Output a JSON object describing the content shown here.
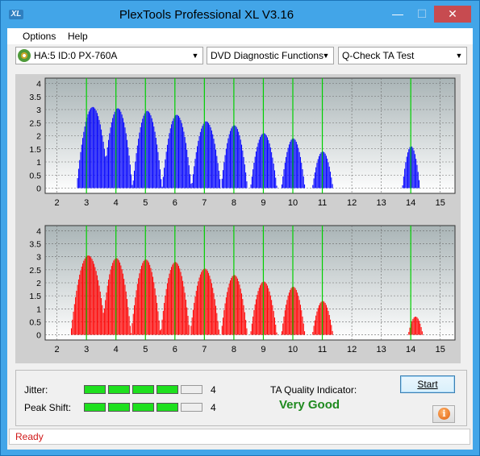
{
  "window": {
    "title": "PlexTools Professional XL V3.16",
    "app_icon_text": "XL",
    "minimize_glyph": "—",
    "maximize_glyph": "☐",
    "close_glyph": "✕"
  },
  "menu": {
    "items": [
      {
        "label": "Options"
      },
      {
        "label": "Help"
      }
    ]
  },
  "toolbar": {
    "drive": {
      "value": "HA:5 ID:0  PX-760A",
      "icon": "disc-drive-icon"
    },
    "function": {
      "value": "DVD Diagnostic Functions"
    },
    "test": {
      "value": "Q-Check TA Test"
    },
    "arrow_glyph": "▼"
  },
  "chart_data": [
    {
      "type": "bar",
      "name": "TA test top (land)",
      "x_ticks": [
        2,
        3,
        4,
        5,
        6,
        7,
        8,
        9,
        10,
        11,
        12,
        13,
        14,
        15
      ],
      "y_ticks": [
        0,
        0.5,
        1,
        1.5,
        2,
        2.5,
        3,
        3.5,
        4
      ],
      "y_tick_labels": [
        "0",
        "0.5",
        "1",
        "1.5",
        "2",
        "2.5",
        "3",
        "3.5",
        "4"
      ],
      "xlim": [
        1.6,
        15.5
      ],
      "ylim": [
        -0.2,
        4.2
      ],
      "green_markers": [
        3,
        4,
        5,
        6,
        7,
        8,
        9,
        10,
        11,
        14
      ],
      "bar_color": "#0000ff",
      "peaks": [
        {
          "center": 3.2,
          "height": 3.1,
          "width": 0.55
        },
        {
          "center": 4.05,
          "height": 3.05,
          "width": 0.5
        },
        {
          "center": 5.05,
          "height": 2.95,
          "width": 0.5
        },
        {
          "center": 6.05,
          "height": 2.8,
          "width": 0.5
        },
        {
          "center": 7.05,
          "height": 2.55,
          "width": 0.5
        },
        {
          "center": 8.0,
          "height": 2.4,
          "width": 0.45
        },
        {
          "center": 9.0,
          "height": 2.1,
          "width": 0.45
        },
        {
          "center": 10.0,
          "height": 1.9,
          "width": 0.4
        },
        {
          "center": 11.0,
          "height": 1.4,
          "width": 0.35
        },
        {
          "center": 14.0,
          "height": 1.6,
          "width": 0.3
        }
      ]
    },
    {
      "type": "bar",
      "name": "TA test bottom (groove)",
      "x_ticks": [
        2,
        3,
        4,
        5,
        6,
        7,
        8,
        9,
        10,
        11,
        12,
        13,
        14,
        15
      ],
      "y_ticks": [
        0,
        0.5,
        1,
        1.5,
        2,
        2.5,
        3,
        3.5,
        4
      ],
      "y_tick_labels": [
        "0",
        "0.5",
        "1",
        "1.5",
        "2",
        "2.5",
        "3",
        "3.5",
        "4"
      ],
      "xlim": [
        1.6,
        15.5
      ],
      "ylim": [
        -0.2,
        4.2
      ],
      "green_markers": [
        3,
        4,
        5,
        6,
        7,
        8,
        9,
        10,
        11,
        14
      ],
      "bar_color": "#ff0000",
      "peaks": [
        {
          "center": 3.05,
          "height": 3.05,
          "width": 0.6
        },
        {
          "center": 4.0,
          "height": 2.95,
          "width": 0.5
        },
        {
          "center": 5.0,
          "height": 2.9,
          "width": 0.5
        },
        {
          "center": 6.0,
          "height": 2.8,
          "width": 0.5
        },
        {
          "center": 7.0,
          "height": 2.55,
          "width": 0.5
        },
        {
          "center": 8.0,
          "height": 2.3,
          "width": 0.45
        },
        {
          "center": 9.0,
          "height": 2.05,
          "width": 0.45
        },
        {
          "center": 10.0,
          "height": 1.85,
          "width": 0.4
        },
        {
          "center": 11.0,
          "height": 1.3,
          "width": 0.35
        },
        {
          "center": 14.15,
          "height": 0.7,
          "width": 0.25
        }
      ]
    }
  ],
  "results": {
    "jitter": {
      "label": "Jitter:",
      "value": "4",
      "level": 4,
      "max": 5
    },
    "peak_shift": {
      "label": "Peak Shift:",
      "value": "4",
      "level": 4,
      "max": 5
    },
    "ta_quality": {
      "label": "TA Quality Indicator:",
      "value": "Very Good",
      "color": "#1f8a1f"
    },
    "start_label": "Start",
    "info_glyph": "i"
  },
  "status": {
    "text": "Ready",
    "color": "#d01818"
  }
}
